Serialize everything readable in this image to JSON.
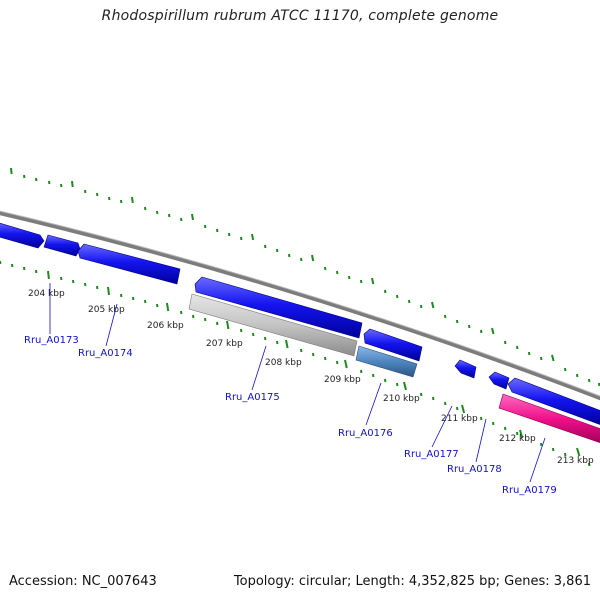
{
  "title": "Rhodospirillum rubrum ATCC 11170, complete genome",
  "accession_text": "Accession: NC_007643",
  "topology_text": "Topology: circular; Length: 4,352,825 bp; Genes: 3,861",
  "colors": {
    "background": "#ffffff",
    "backbone": "#808080",
    "tick_marks": "#1f8a1f",
    "forward_gene": "#1a1af0",
    "reverse_gene_grey": "#bdbdbd",
    "reverse_gene_steelblue": "#4f86c0",
    "reverse_gene_pink": "#f0108a",
    "gene_labels": "#1010c8",
    "kbp_labels": "#222222"
  },
  "kbp_labels": [
    "204 kbp",
    "205 kbp",
    "206 kbp",
    "207 kbp",
    "208 kbp",
    "209 kbp",
    "210 kbp",
    "211 kbp",
    "212 kbp",
    "213 kbp"
  ],
  "gene_labels": [
    "Rru_A0173",
    "Rru_A0174",
    "Rru_A0175",
    "Rru_A0176",
    "Rru_A0177",
    "Rru_A0178",
    "Rru_A0179"
  ]
}
